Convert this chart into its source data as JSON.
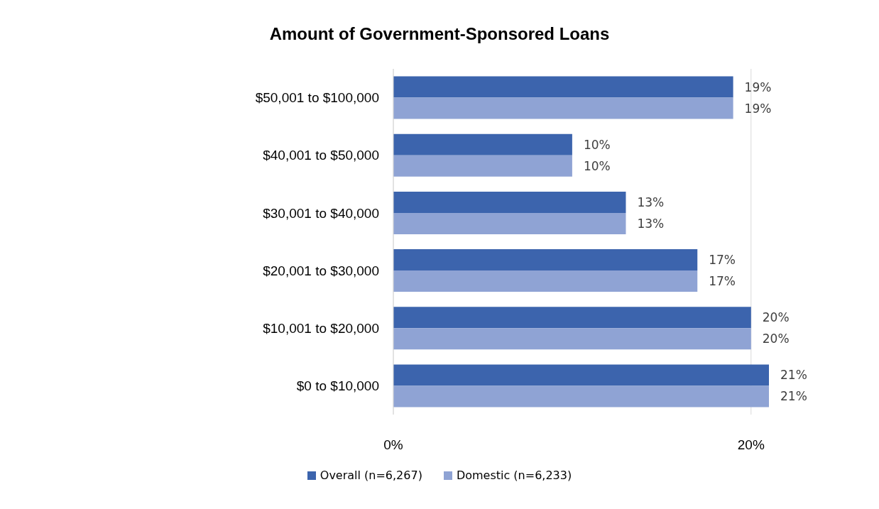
{
  "chart_data": {
    "type": "bar",
    "orientation": "horizontal",
    "title": "Amount of Government-Sponsored Loans",
    "categories": [
      "$50,001 to $100,000",
      "$40,001 to $50,000",
      "$30,001 to $40,000",
      "$20,001 to $30,000",
      "$10,001 to $20,000",
      "$0 to $10,000"
    ],
    "series": [
      {
        "name": "Overall (n=6,267)",
        "color": "#3c64ad",
        "values": [
          19,
          10,
          13,
          17,
          20,
          21
        ],
        "value_labels": [
          "19%",
          "10%",
          "13%",
          "17%",
          "20%",
          "21%"
        ]
      },
      {
        "name": "Domestic (n=6,233)",
        "color": "#8fa3d4",
        "values": [
          19,
          10,
          13,
          17,
          20,
          21
        ],
        "value_labels": [
          "19%",
          "10%",
          "13%",
          "17%",
          "20%",
          "21%"
        ]
      }
    ],
    "xlim": [
      0,
      21
    ],
    "xticks": [
      {
        "value": 0,
        "label": "0%"
      },
      {
        "value": 20,
        "label": "20%"
      }
    ],
    "grid": "x",
    "legend": "bottom"
  }
}
